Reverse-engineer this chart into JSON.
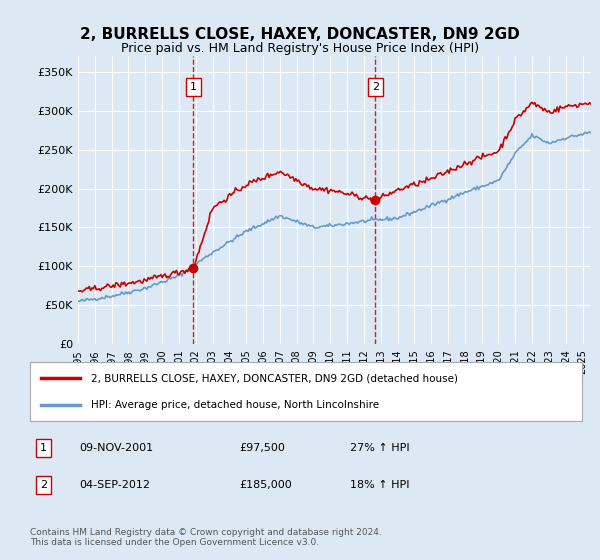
{
  "title": "2, BURRELLS CLOSE, HAXEY, DONCASTER, DN9 2GD",
  "subtitle": "Price paid vs. HM Land Registry's House Price Index (HPI)",
  "ylim": [
    0,
    370000
  ],
  "xlim_start": 1995.0,
  "xlim_end": 2025.5,
  "bg_color": "#dce9f5",
  "plot_bg_color": "#dce9f5",
  "grid_color": "#ffffff",
  "purchase1": {
    "date_num": 2001.86,
    "price": 97500,
    "label": "1",
    "date_str": "09-NOV-2001",
    "pct": "27%"
  },
  "purchase2": {
    "date_num": 2012.67,
    "price": 185000,
    "label": "2",
    "date_str": "04-SEP-2012",
    "pct": "18%"
  },
  "vline_color": "#cc0000",
  "marker_color": "#cc0000",
  "line_color_property": "#cc0000",
  "line_color_hpi": "#6699cc",
  "legend_label1": "2, BURRELLS CLOSE, HAXEY, DONCASTER, DN9 2GD (detached house)",
  "legend_label2": "HPI: Average price, detached house, North Lincolnshire",
  "footer": "Contains HM Land Registry data © Crown copyright and database right 2024.\nThis data is licensed under the Open Government Licence v3.0.",
  "hpi_anchors_x": [
    1995,
    1997,
    1999,
    2001,
    2003,
    2005,
    2007,
    2009,
    2010,
    2012,
    2014,
    2016,
    2018,
    2020,
    2021,
    2022,
    2023,
    2024,
    2025.5
  ],
  "hpi_anchors_y": [
    55000,
    62000,
    72000,
    88000,
    118000,
    145000,
    165000,
    150000,
    152000,
    158000,
    162000,
    178000,
    195000,
    210000,
    245000,
    268000,
    258000,
    265000,
    272000
  ],
  "prop_anchors_x": [
    1995,
    1997,
    1999,
    2001.86,
    2003,
    2005,
    2007,
    2009,
    2010,
    2012.67,
    2014,
    2016,
    2018,
    2020,
    2021,
    2022,
    2023,
    2024,
    2025.5
  ],
  "prop_anchors_y": [
    68000,
    75000,
    82000,
    97500,
    175000,
    205000,
    222000,
    200000,
    198000,
    185000,
    198000,
    212000,
    232000,
    248000,
    288000,
    310000,
    298000,
    305000,
    310000
  ]
}
